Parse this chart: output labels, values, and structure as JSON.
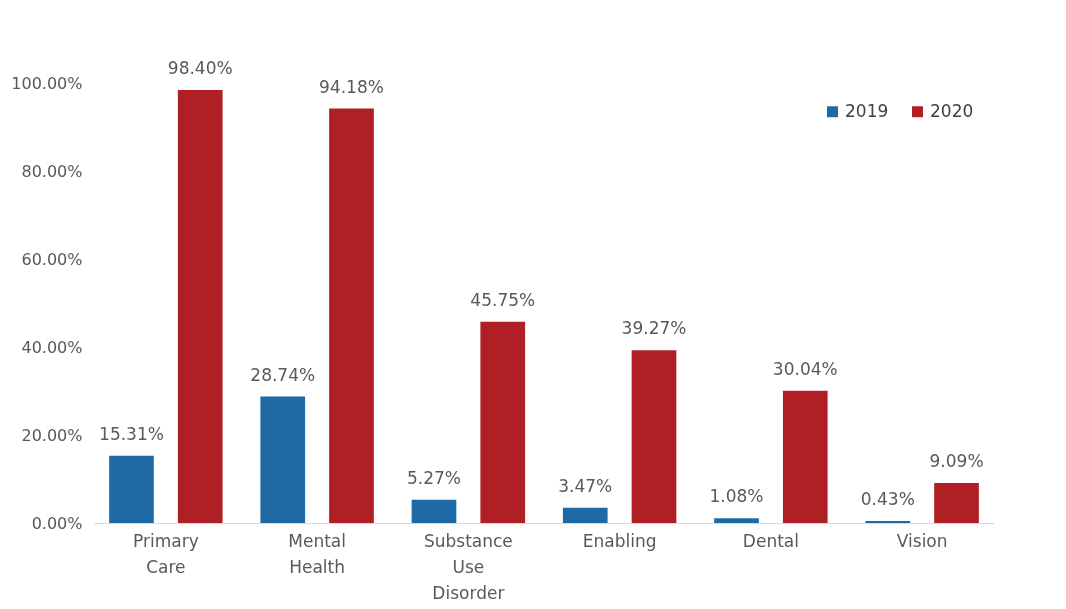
{
  "chart_data": {
    "type": "bar",
    "categories": [
      "Primary Care",
      "Mental Health",
      "Substance Use Disorder",
      "Enabling",
      "Dental",
      "Vision"
    ],
    "series": [
      {
        "name": "2019",
        "color": "#1f6aa5",
        "values": [
          15.31,
          28.74,
          5.27,
          3.47,
          1.08,
          0.43
        ],
        "value_labels": [
          "15.31%",
          "28.74%",
          "5.27%",
          "3.47%",
          "1.08%",
          "0.43%"
        ]
      },
      {
        "name": "2020",
        "color": "#b01f24",
        "values": [
          98.4,
          94.18,
          45.75,
          39.27,
          30.04,
          9.09
        ],
        "value_labels": [
          "98.40%",
          "94.18%",
          "45.75%",
          "39.27%",
          "30.04%",
          "9.09%"
        ]
      }
    ],
    "ylim": [
      0,
      100
    ],
    "yticks": [
      {
        "value": 0,
        "label": "0.00%"
      },
      {
        "value": 20,
        "label": "20.00%"
      },
      {
        "value": 40,
        "label": "40.00%"
      },
      {
        "value": 60,
        "label": "60.00%"
      },
      {
        "value": 80,
        "label": "80.00%"
      },
      {
        "value": 100,
        "label": "100.00%"
      }
    ],
    "grid": false,
    "legend": "top right"
  }
}
